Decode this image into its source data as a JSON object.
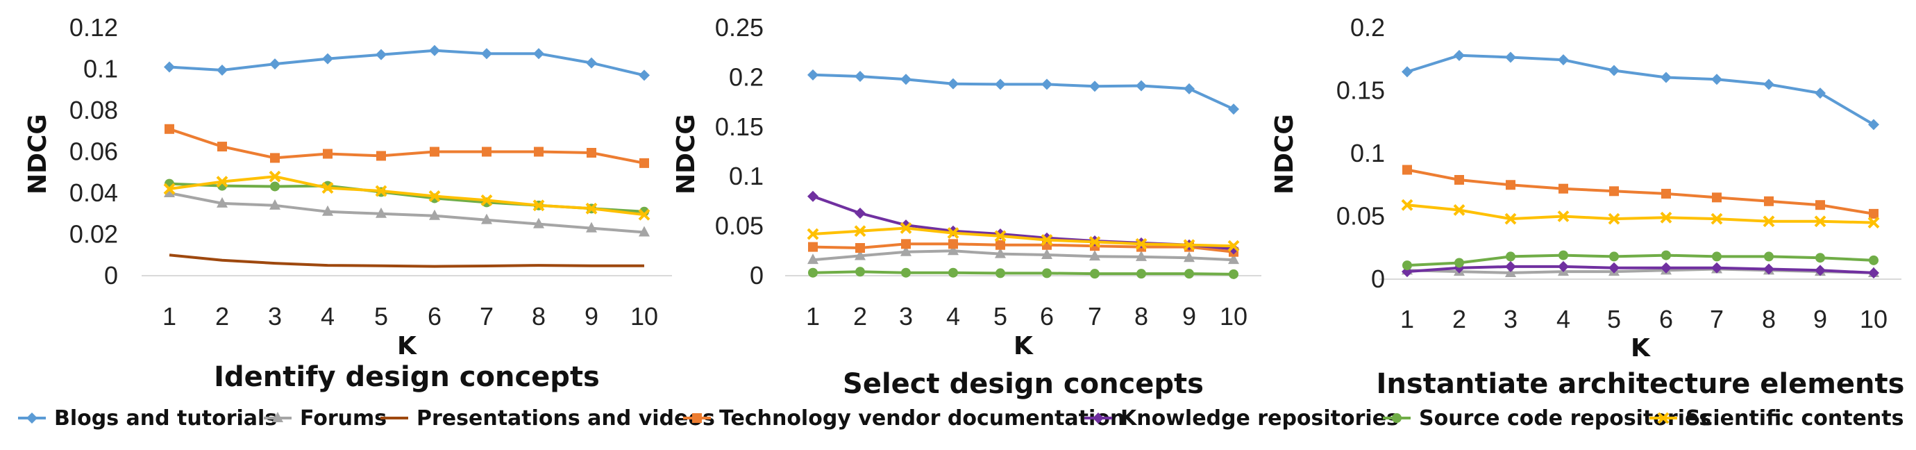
{
  "series_styles": [
    {
      "name": "Blogs and tutorials",
      "color": "#5B9BD5",
      "marker": "diamond"
    },
    {
      "name": "Forums",
      "color": "#A5A5A5",
      "marker": "triangle"
    },
    {
      "name": "Presentations and videos",
      "color": "#9E480E",
      "marker": "none"
    },
    {
      "name": "Technology vendor documentation",
      "color": "#ED7D31",
      "marker": "square"
    },
    {
      "name": "Knowledge repositories",
      "color": "#7030A0",
      "marker": "diamond"
    },
    {
      "name": "Source code repositories",
      "color": "#70AD47",
      "marker": "circle"
    },
    {
      "name": "Scientific contents",
      "color": "#FFC000",
      "marker": "cross"
    }
  ],
  "chart_data": [
    {
      "type": "line",
      "title": "Identify design concepts",
      "xlabel": "K",
      "ylabel": "NDCG",
      "x": [
        1,
        2,
        3,
        4,
        5,
        6,
        7,
        8,
        9,
        10
      ],
      "yticks": [
        "0",
        "0.02",
        "0.04",
        "0.06",
        "0.08",
        "0.1",
        "0.12"
      ],
      "ylim": [
        0,
        0.12
      ],
      "grid": false,
      "series": [
        {
          "name": "Blogs and tutorials",
          "values": [
            0.101,
            0.0995,
            0.1025,
            0.105,
            0.107,
            0.109,
            0.1075,
            0.1075,
            0.103,
            0.097
          ]
        },
        {
          "name": "Forums",
          "values": [
            0.04,
            0.035,
            0.034,
            0.031,
            0.03,
            0.029,
            0.027,
            0.025,
            0.023,
            0.021
          ]
        },
        {
          "name": "Presentations and videos",
          "values": [
            0.01,
            0.0075,
            0.006,
            0.005,
            0.0048,
            0.0045,
            0.0047,
            0.005,
            0.0048,
            0.0048
          ]
        },
        {
          "name": "Technology vendor documentation",
          "values": [
            0.071,
            0.0625,
            0.057,
            0.059,
            0.058,
            0.06,
            0.06,
            0.06,
            0.0595,
            0.0545
          ]
        },
        {
          "name": "Source code repositories",
          "values": [
            0.0445,
            0.0435,
            0.0432,
            0.0435,
            0.0405,
            0.0375,
            0.0355,
            0.034,
            0.0325,
            0.031
          ]
        },
        {
          "name": "Scientific contents",
          "values": [
            0.042,
            0.0455,
            0.048,
            0.0425,
            0.041,
            0.0385,
            0.0365,
            0.034,
            0.0325,
            0.0295
          ]
        }
      ]
    },
    {
      "type": "line",
      "title": "Select design concepts",
      "xlabel": "K",
      "ylabel": "NDCG",
      "x": [
        1,
        2,
        3,
        4,
        5,
        6,
        7,
        8,
        9,
        10
      ],
      "yticks": [
        "0",
        "0.05",
        "0.1",
        "0.15",
        "0.2",
        "0.25"
      ],
      "ylim": [
        0,
        0.25
      ],
      "grid": false,
      "series": [
        {
          "name": "Blogs and tutorials",
          "values": [
            0.2025,
            0.201,
            0.198,
            0.1935,
            0.193,
            0.193,
            0.191,
            0.1915,
            0.1885,
            0.168
          ]
        },
        {
          "name": "Forums",
          "values": [
            0.016,
            0.02,
            0.024,
            0.025,
            0.022,
            0.021,
            0.0195,
            0.019,
            0.018,
            0.016
          ]
        },
        {
          "name": "Technology vendor documentation",
          "values": [
            0.029,
            0.028,
            0.032,
            0.032,
            0.031,
            0.031,
            0.03,
            0.029,
            0.029,
            0.024
          ]
        },
        {
          "name": "Knowledge repositories",
          "values": [
            0.08,
            0.063,
            0.051,
            0.045,
            0.042,
            0.038,
            0.035,
            0.033,
            0.031,
            0.027
          ]
        },
        {
          "name": "Source code repositories",
          "values": [
            0.003,
            0.004,
            0.003,
            0.003,
            0.0025,
            0.0025,
            0.002,
            0.002,
            0.002,
            0.0015
          ]
        },
        {
          "name": "Scientific contents",
          "values": [
            0.042,
            0.045,
            0.048,
            0.043,
            0.04,
            0.036,
            0.034,
            0.032,
            0.031,
            0.03
          ]
        }
      ]
    },
    {
      "type": "line",
      "title": "Instantiate architecture elements",
      "xlabel": "K",
      "ylabel": "NDCG",
      "x": [
        1,
        2,
        3,
        4,
        5,
        6,
        7,
        8,
        9,
        10
      ],
      "yticks": [
        "0",
        "0.05",
        "0.1",
        "0.15",
        "0.2"
      ],
      "ylim": [
        0,
        0.2
      ],
      "grid": false,
      "series": [
        {
          "name": "Blogs and tutorials",
          "values": [
            0.165,
            0.178,
            0.1765,
            0.1745,
            0.166,
            0.1605,
            0.159,
            0.155,
            0.148,
            0.123
          ]
        },
        {
          "name": "Forums",
          "values": [
            0.007,
            0.006,
            0.005,
            0.006,
            0.006,
            0.007,
            0.008,
            0.007,
            0.006,
            0.005
          ]
        },
        {
          "name": "Technology vendor documentation",
          "values": [
            0.087,
            0.079,
            0.075,
            0.072,
            0.07,
            0.068,
            0.065,
            0.062,
            0.059,
            0.052
          ]
        },
        {
          "name": "Knowledge repositories",
          "values": [
            0.006,
            0.009,
            0.01,
            0.01,
            0.009,
            0.009,
            0.009,
            0.008,
            0.007,
            0.005
          ]
        },
        {
          "name": "Source code repositories",
          "values": [
            0.011,
            0.013,
            0.018,
            0.019,
            0.018,
            0.019,
            0.018,
            0.018,
            0.017,
            0.015
          ]
        },
        {
          "name": "Scientific contents",
          "values": [
            0.059,
            0.055,
            0.048,
            0.05,
            0.048,
            0.049,
            0.048,
            0.046,
            0.046,
            0.045
          ]
        }
      ]
    }
  ]
}
